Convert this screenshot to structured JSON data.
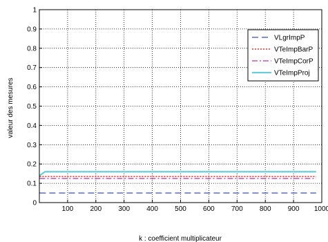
{
  "chart_data": {
    "type": "line",
    "title": "",
    "xlabel": "k : coefficient multiplicateur",
    "ylabel": "valeur des mesures",
    "xlim": [
      0,
      1000
    ],
    "ylim": [
      0,
      1
    ],
    "x_ticks": [
      100,
      200,
      300,
      400,
      500,
      600,
      700,
      800,
      900,
      1000
    ],
    "y_ticks": [
      0,
      0.1,
      0.2,
      0.3,
      0.4,
      0.5,
      0.6,
      0.7,
      0.8,
      0.9,
      1
    ],
    "x_tick_labels": [
      "100",
      "200",
      "300",
      "400",
      "500",
      "600",
      "700",
      "800",
      "900",
      "1000"
    ],
    "y_tick_labels": [
      "0",
      "0.1",
      "0.2",
      "0.3",
      "0.4",
      "0.5",
      "0.6",
      "0.7",
      "0.8",
      "0.9",
      "1"
    ],
    "grid": true,
    "grid_style": "dotted",
    "legend_position": "top-right",
    "series": [
      {
        "name": "VLgrImpP",
        "color": "#3a4fa8",
        "dash": "long-dash",
        "points": [
          [
            1,
            0.05
          ],
          [
            980,
            0.05
          ]
        ]
      },
      {
        "name": "VTeImpBarP",
        "color": "#e8342a",
        "dash": "dotted",
        "points": [
          [
            1,
            0.135
          ],
          [
            980,
            0.135
          ]
        ]
      },
      {
        "name": "VTeImpCorP",
        "color": "#b03aa3",
        "dash": "dash-dot",
        "points": [
          [
            1,
            0.125
          ],
          [
            980,
            0.125
          ]
        ]
      },
      {
        "name": "VTeImpProj",
        "color": "#6ccbd6",
        "dash": "solid",
        "points": [
          [
            1,
            0.14
          ],
          [
            20,
            0.16
          ],
          [
            980,
            0.16
          ]
        ]
      }
    ]
  }
}
